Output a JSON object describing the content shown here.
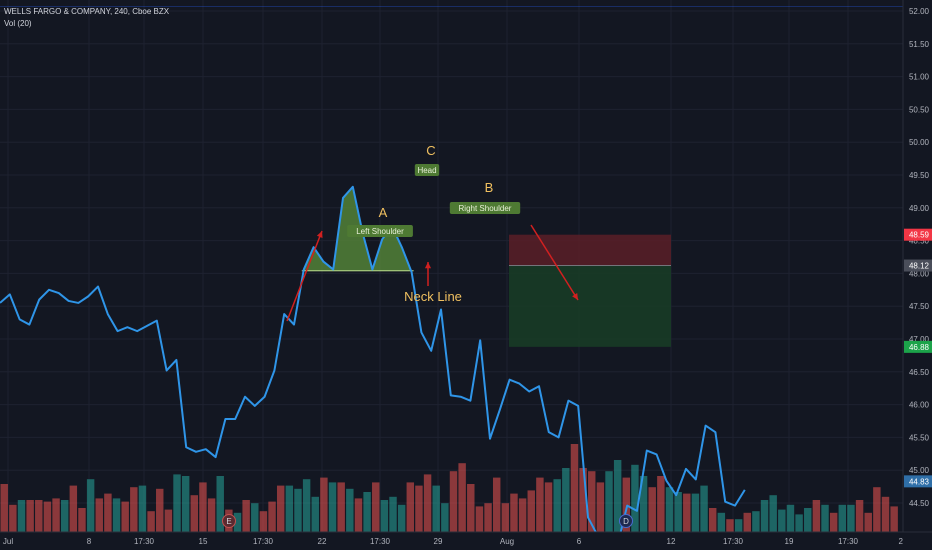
{
  "header": {
    "symbol_line": "WELLS FARGO & COMPANY, 240, Cboe BZX",
    "volume_label": "Vol (20)"
  },
  "colors": {
    "background": "#131722",
    "price_line": "#2f95e8",
    "volume_up": "#26a69a",
    "volume_down": "#ef5350",
    "pattern_fill": "#5a8f3a",
    "pattern_label_bg": "#4e7a33",
    "annotation_text": "#f0c060",
    "arrow": "#d12020",
    "stop_zone": "#5a1e27",
    "target_zone": "#183b26",
    "stop_tag": "#f23645",
    "target_tag": "#1ca34a",
    "entry_tag": "#4a4e5a"
  },
  "chart_data": {
    "type": "line",
    "ylim": [
      44.0,
      52.1
    ],
    "yticks": [
      "52.00",
      "51.50",
      "51.00",
      "50.50",
      "50.00",
      "49.50",
      "49.00",
      "48.50",
      "48.00",
      "47.50",
      "47.00",
      "46.50",
      "46.00",
      "45.50",
      "45.00",
      "44.50",
      "44.00"
    ],
    "xticks": [
      "Jul",
      "8",
      "17:30",
      "15",
      "17:30",
      "22",
      "17:30",
      "29",
      "Aug",
      "6",
      "12",
      "17:30",
      "19",
      "17:30",
      "2"
    ],
    "price": [
      47.55,
      47.68,
      47.3,
      47.22,
      47.6,
      47.75,
      47.7,
      47.58,
      47.55,
      47.65,
      47.8,
      47.38,
      47.12,
      47.18,
      47.12,
      47.2,
      47.28,
      46.52,
      46.68,
      45.35,
      45.28,
      45.32,
      45.2,
      45.78,
      45.78,
      46.12,
      45.98,
      46.12,
      46.52,
      47.38,
      47.22,
      48.06,
      48.4,
      48.18,
      48.06,
      49.15,
      49.32,
      48.62,
      48.06,
      48.52,
      48.72,
      48.4,
      48.02,
      47.1,
      46.82,
      47.45,
      46.14,
      46.12,
      46.06,
      46.98,
      45.48,
      45.92,
      46.38,
      46.32,
      46.2,
      46.28,
      45.58,
      45.5,
      46.06,
      45.98,
      44.28,
      44.0,
      43.8,
      43.85,
      44.46,
      44.38,
      45.3,
      45.24,
      44.84,
      44.62,
      45.02,
      44.86,
      45.68,
      45.58,
      44.52,
      44.46,
      44.7
    ],
    "volume": [
      {
        "v": 0.3,
        "c": "d"
      },
      {
        "v": 0.17,
        "c": "d"
      },
      {
        "v": 0.2,
        "c": "u"
      },
      {
        "v": 0.2,
        "c": "d"
      },
      {
        "v": 0.2,
        "c": "d"
      },
      {
        "v": 0.19,
        "c": "d"
      },
      {
        "v": 0.21,
        "c": "d"
      },
      {
        "v": 0.2,
        "c": "u"
      },
      {
        "v": 0.29,
        "c": "d"
      },
      {
        "v": 0.15,
        "c": "d"
      },
      {
        "v": 0.33,
        "c": "u"
      },
      {
        "v": 0.21,
        "c": "d"
      },
      {
        "v": 0.24,
        "c": "d"
      },
      {
        "v": 0.21,
        "c": "u"
      },
      {
        "v": 0.19,
        "c": "d"
      },
      {
        "v": 0.28,
        "c": "d"
      },
      {
        "v": 0.29,
        "c": "u"
      },
      {
        "v": 0.13,
        "c": "d"
      },
      {
        "v": 0.27,
        "c": "d"
      },
      {
        "v": 0.14,
        "c": "d"
      },
      {
        "v": 0.36,
        "c": "u"
      },
      {
        "v": 0.35,
        "c": "u"
      },
      {
        "v": 0.23,
        "c": "d"
      },
      {
        "v": 0.31,
        "c": "d"
      },
      {
        "v": 0.21,
        "c": "d"
      },
      {
        "v": 0.35,
        "c": "u"
      },
      {
        "v": 0.14,
        "c": "d"
      },
      {
        "v": 0.12,
        "c": "u"
      },
      {
        "v": 0.2,
        "c": "d"
      },
      {
        "v": 0.18,
        "c": "u"
      },
      {
        "v": 0.13,
        "c": "d"
      },
      {
        "v": 0.19,
        "c": "d"
      },
      {
        "v": 0.29,
        "c": "d"
      },
      {
        "v": 0.29,
        "c": "u"
      },
      {
        "v": 0.27,
        "c": "u"
      },
      {
        "v": 0.33,
        "c": "u"
      },
      {
        "v": 0.22,
        "c": "u"
      },
      {
        "v": 0.34,
        "c": "d"
      },
      {
        "v": 0.31,
        "c": "u"
      },
      {
        "v": 0.31,
        "c": "d"
      },
      {
        "v": 0.27,
        "c": "u"
      },
      {
        "v": 0.21,
        "c": "d"
      },
      {
        "v": 0.25,
        "c": "u"
      },
      {
        "v": 0.31,
        "c": "d"
      },
      {
        "v": 0.2,
        "c": "u"
      },
      {
        "v": 0.22,
        "c": "u"
      },
      {
        "v": 0.17,
        "c": "u"
      },
      {
        "v": 0.31,
        "c": "d"
      },
      {
        "v": 0.29,
        "c": "d"
      },
      {
        "v": 0.36,
        "c": "d"
      },
      {
        "v": 0.29,
        "c": "u"
      },
      {
        "v": 0.18,
        "c": "u"
      },
      {
        "v": 0.38,
        "c": "d"
      },
      {
        "v": 0.43,
        "c": "d"
      },
      {
        "v": 0.3,
        "c": "d"
      },
      {
        "v": 0.16,
        "c": "d"
      },
      {
        "v": 0.18,
        "c": "d"
      },
      {
        "v": 0.34,
        "c": "d"
      },
      {
        "v": 0.18,
        "c": "d"
      },
      {
        "v": 0.24,
        "c": "d"
      },
      {
        "v": 0.21,
        "c": "d"
      },
      {
        "v": 0.26,
        "c": "d"
      },
      {
        "v": 0.34,
        "c": "d"
      },
      {
        "v": 0.31,
        "c": "d"
      },
      {
        "v": 0.33,
        "c": "u"
      },
      {
        "v": 0.4,
        "c": "u"
      },
      {
        "v": 0.55,
        "c": "d"
      },
      {
        "v": 0.4,
        "c": "d"
      },
      {
        "v": 0.38,
        "c": "d"
      },
      {
        "v": 0.31,
        "c": "d"
      },
      {
        "v": 0.38,
        "c": "u"
      },
      {
        "v": 0.45,
        "c": "u"
      },
      {
        "v": 0.34,
        "c": "d"
      },
      {
        "v": 0.42,
        "c": "u"
      },
      {
        "v": 0.35,
        "c": "u"
      },
      {
        "v": 0.28,
        "c": "d"
      },
      {
        "v": 0.35,
        "c": "d"
      },
      {
        "v": 0.28,
        "c": "u"
      },
      {
        "v": 0.25,
        "c": "u"
      },
      {
        "v": 0.24,
        "c": "d"
      },
      {
        "v": 0.24,
        "c": "u"
      },
      {
        "v": 0.29,
        "c": "u"
      },
      {
        "v": 0.15,
        "c": "d"
      },
      {
        "v": 0.12,
        "c": "u"
      },
      {
        "v": 0.08,
        "c": "d"
      },
      {
        "v": 0.08,
        "c": "u"
      },
      {
        "v": 0.12,
        "c": "d"
      },
      {
        "v": 0.13,
        "c": "u"
      },
      {
        "v": 0.2,
        "c": "u"
      },
      {
        "v": 0.23,
        "c": "u"
      },
      {
        "v": 0.14,
        "c": "u"
      },
      {
        "v": 0.17,
        "c": "u"
      },
      {
        "v": 0.11,
        "c": "u"
      },
      {
        "v": 0.15,
        "c": "u"
      },
      {
        "v": 0.2,
        "c": "d"
      },
      {
        "v": 0.17,
        "c": "u"
      },
      {
        "v": 0.12,
        "c": "d"
      },
      {
        "v": 0.17,
        "c": "u"
      },
      {
        "v": 0.17,
        "c": "u"
      },
      {
        "v": 0.2,
        "c": "d"
      },
      {
        "v": 0.12,
        "c": "d"
      },
      {
        "v": 0.28,
        "c": "d"
      },
      {
        "v": 0.22,
        "c": "d"
      },
      {
        "v": 0.16,
        "c": "d"
      }
    ],
    "price_tags": {
      "stop": "48.59",
      "entry": "48.12",
      "target": "46.88",
      "last": "44.83"
    },
    "trade_box": {
      "entry": 48.12,
      "stop": 48.59,
      "target": 46.88
    },
    "pattern": {
      "points": [
        [
          31,
          48.06
        ],
        [
          32,
          48.4
        ],
        [
          33,
          48.18
        ],
        [
          34,
          48.06
        ],
        [
          35,
          49.15
        ],
        [
          36,
          49.32
        ],
        [
          37,
          48.62
        ],
        [
          38,
          48.06
        ],
        [
          39,
          48.52
        ],
        [
          40,
          48.72
        ],
        [
          41,
          48.4
        ],
        [
          42,
          48.02
        ]
      ],
      "neckline": 48.04
    },
    "annotations": {
      "left_shoulder": "Left Shoulder",
      "head": "Head",
      "right_shoulder": "Right Shoulder",
      "point_a": "A",
      "point_b": "B",
      "point_c": "C",
      "neckline": "Neck Line"
    },
    "event_markers": [
      "E",
      "D"
    ]
  }
}
